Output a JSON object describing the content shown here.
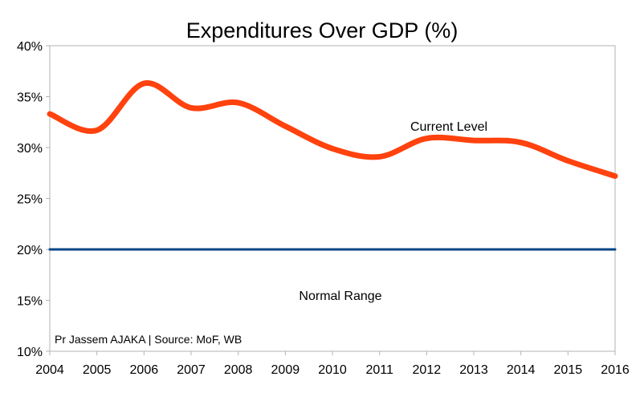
{
  "chart_data": {
    "type": "line",
    "title": "Expenditures Over GDP (%)",
    "xlabel": "",
    "ylabel": "",
    "x": [
      2004,
      2005,
      2006,
      2007,
      2008,
      2009,
      2010,
      2011,
      2012,
      2013,
      2014,
      2015,
      2016
    ],
    "x_tick_labels": [
      "2004",
      "2005",
      "2006",
      "2007",
      "2008",
      "2009",
      "2010",
      "2011",
      "2012",
      "2013",
      "2014",
      "2015",
      "2016"
    ],
    "y_tick_labels": [
      "10%",
      "15%",
      "20%",
      "25%",
      "30%",
      "35%",
      "40%"
    ],
    "y_ticks": [
      10,
      15,
      20,
      25,
      30,
      35,
      40
    ],
    "ylim": [
      10,
      40
    ],
    "grid": false,
    "series": [
      {
        "name": "Current Level",
        "color": "#ff420e",
        "smooth": true,
        "values": [
          33.3,
          31.7,
          36.3,
          33.9,
          34.4,
          32.1,
          29.9,
          29.1,
          30.9,
          30.7,
          30.5,
          28.7,
          27.2
        ]
      },
      {
        "name": "Normal Range threshold",
        "color": "#004586",
        "values": [
          20,
          20,
          20,
          20,
          20,
          20,
          20,
          20,
          20,
          20,
          20,
          20,
          20
        ]
      }
    ],
    "annotations": {
      "current_level": "Current Level",
      "normal_range": "Normal Range",
      "source": "Pr Jassem AJAKA | Source: MoF, WB"
    }
  }
}
